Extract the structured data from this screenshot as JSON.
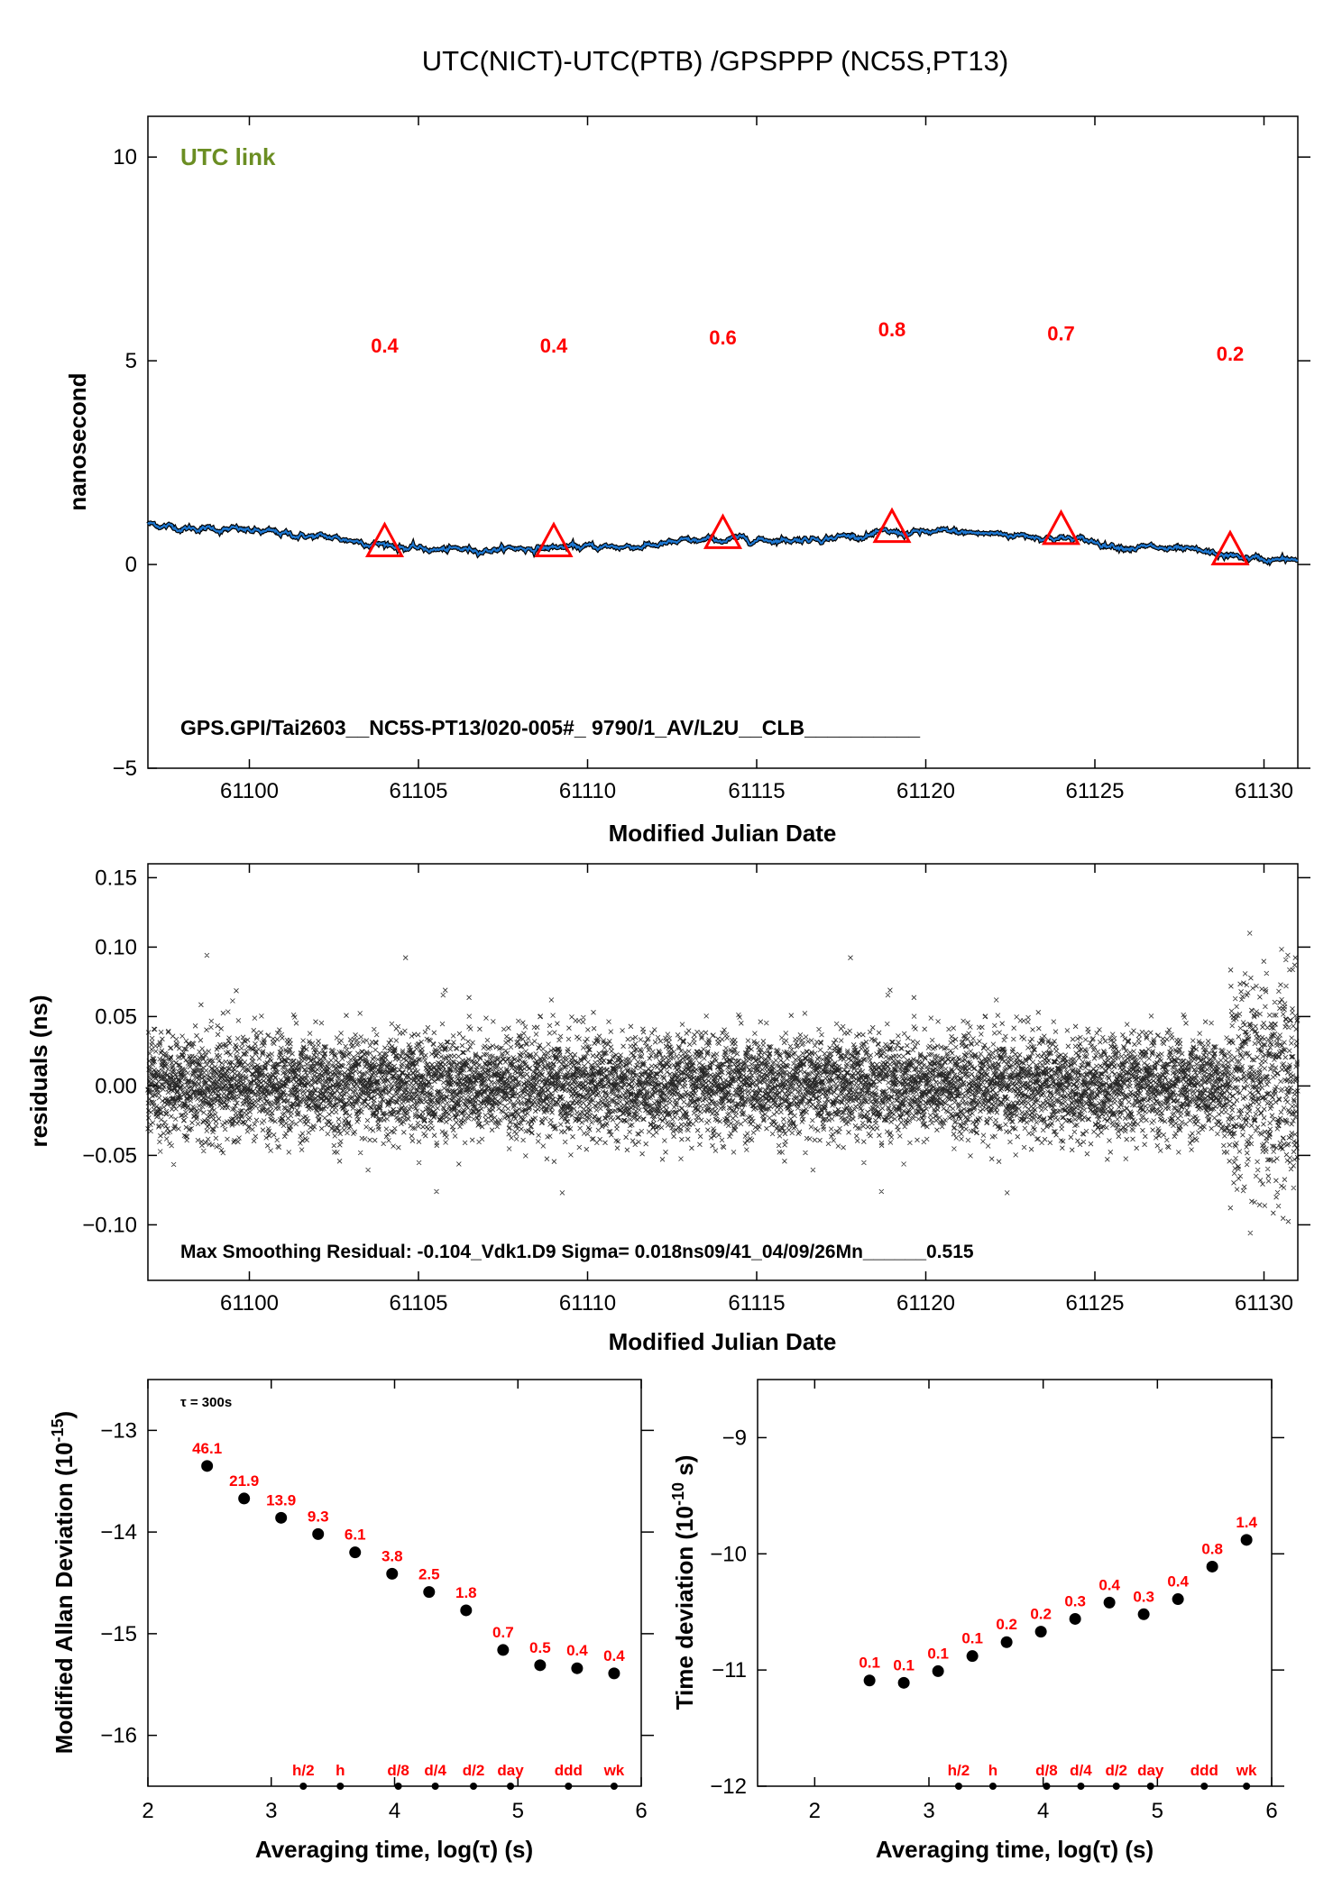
{
  "title": "UTC(NICT)-UTC(PTB)  /GPSPPP  (NC5S,PT13)",
  "colors": {
    "series_blue": "#1e78d2",
    "trace_black": "#000000",
    "marker_red": "#ff0000",
    "link_green": "#6b8e23"
  },
  "chart_data": [
    {
      "id": "top",
      "type": "line",
      "ylabel": "nanosecond",
      "xlabel": "Modified Julian Date",
      "xlim": [
        61097,
        61131
      ],
      "ylim": [
        -5,
        11
      ],
      "xticks": [
        61100,
        61105,
        61110,
        61115,
        61120,
        61125,
        61130
      ],
      "xtick_labels": [
        "61100",
        "61105",
        "61110",
        "61115",
        "61120",
        "61125",
        "61130"
      ],
      "yticks": [
        -5,
        0,
        5,
        10
      ],
      "ytick_labels": [
        "−5",
        "0",
        "5",
        "10"
      ],
      "link_label": "UTC link",
      "info": "GPS.GPI/Tai2603__NC5S-PT13/020-005#_  9790/1_AV/L2U__CLB__________",
      "series": [
        {
          "x": [
            61097,
            61098,
            61099,
            61100,
            61101,
            61102,
            61103,
            61104,
            61105,
            61106,
            61107,
            61108,
            61109,
            61110,
            61111,
            61112,
            61113,
            61114,
            61115,
            61116,
            61117,
            61118,
            61119,
            61120,
            61121,
            61122,
            61123,
            61124,
            61125,
            61126,
            61127,
            61128,
            61129,
            61130,
            61131
          ],
          "y": [
            1.0,
            0.9,
            0.88,
            0.82,
            0.75,
            0.68,
            0.6,
            0.5,
            0.38,
            0.35,
            0.38,
            0.4,
            0.42,
            0.42,
            0.44,
            0.48,
            0.55,
            0.6,
            0.62,
            0.62,
            0.66,
            0.72,
            0.76,
            0.78,
            0.78,
            0.75,
            0.72,
            0.65,
            0.55,
            0.45,
            0.38,
            0.3,
            0.2,
            0.12,
            0.1
          ]
        }
      ],
      "markers": [
        {
          "x": 61104,
          "y": 0.5,
          "label": "0.4",
          "label_y": 5.2
        },
        {
          "x": 61109,
          "y": 0.5,
          "label": "0.4",
          "label_y": 5.2
        },
        {
          "x": 61114,
          "y": 0.7,
          "label": "0.6",
          "label_y": 5.4
        },
        {
          "x": 61119,
          "y": 0.85,
          "label": "0.8",
          "label_y": 5.6
        },
        {
          "x": 61124,
          "y": 0.8,
          "label": "0.7",
          "label_y": 5.5
        },
        {
          "x": 61129,
          "y": 0.3,
          "label": "0.2",
          "label_y": 5.0
        }
      ]
    },
    {
      "id": "residuals",
      "type": "scatter",
      "ylabel": "residuals (ns)",
      "xlabel": "Modified Julian Date",
      "xlim": [
        61097,
        61131
      ],
      "ylim": [
        -0.14,
        0.16
      ],
      "xticks": [
        61100,
        61105,
        61110,
        61115,
        61120,
        61125,
        61130
      ],
      "xtick_labels": [
        "61100",
        "61105",
        "61110",
        "61115",
        "61120",
        "61125",
        "61130"
      ],
      "yticks": [
        -0.1,
        -0.05,
        0.0,
        0.05,
        0.1,
        0.15
      ],
      "ytick_labels": [
        "−0.10",
        "−0.05",
        "0.00",
        "0.05",
        "0.10",
        "0.15"
      ],
      "info": "Max Smoothing Residual: -0.104_Vdk1.D9  Sigma= 0.018ns09/41_04/09/26Mn______0.515",
      "sigma": 0.018,
      "scatter_summary": "dense cloud of ~9000 residual points centred on 0.00 with sigma 0.018 ns and occasional spikes up to about +/-0.1"
    },
    {
      "id": "mdev",
      "type": "scatter",
      "ylabel": "Modified Allan Deviation (10",
      "ylabel_sup": "-15",
      "ylabel_tail": ")",
      "xlabel": "Averaging time, log(τ) (s)",
      "xlim": [
        2,
        6
      ],
      "ylim": [
        -16.5,
        -12.5
      ],
      "xticks": [
        2,
        3,
        4,
        5,
        6
      ],
      "xtick_labels": [
        "2",
        "3",
        "4",
        "5",
        "6"
      ],
      "yticks": [
        -16,
        -15,
        -14,
        -13
      ],
      "ytick_labels": [
        "−16",
        "−15",
        "−14",
        "−13"
      ],
      "tau_note": "τ = 300s",
      "x": [
        2.48,
        2.78,
        3.08,
        3.38,
        3.68,
        3.98,
        4.28,
        4.58,
        4.88,
        5.18,
        5.48,
        5.78
      ],
      "y": [
        -13.35,
        -13.67,
        -13.86,
        -14.02,
        -14.2,
        -14.41,
        -14.59,
        -14.77,
        -15.16,
        -15.31,
        -15.34,
        -15.39
      ],
      "labels": [
        "46.1",
        "21.9",
        "13.9",
        "9.3",
        "6.1",
        "3.8",
        "2.5",
        "1.8",
        "0.7",
        "0.5",
        "0.4",
        "0.4"
      ],
      "markers": [
        {
          "x": 3.26,
          "label": "h/2"
        },
        {
          "x": 3.56,
          "label": "h"
        },
        {
          "x": 4.03,
          "label": "d/8"
        },
        {
          "x": 4.33,
          "label": "d/4"
        },
        {
          "x": 4.64,
          "label": "d/2"
        },
        {
          "x": 4.94,
          "label": "day"
        },
        {
          "x": 5.41,
          "label": "ddd"
        },
        {
          "x": 5.78,
          "label": "wk"
        }
      ]
    },
    {
      "id": "tdev",
      "type": "scatter",
      "ylabel": "Time deviation (10",
      "ylabel_sup": "-10",
      "ylabel_tail": " s)",
      "xlabel": "Averaging time, log(τ) (s)",
      "xlim": [
        1.5,
        6
      ],
      "ylim": [
        -12,
        -8.5
      ],
      "xticks": [
        2,
        3,
        4,
        5,
        6
      ],
      "xtick_labels": [
        "2",
        "3",
        "4",
        "5",
        "6"
      ],
      "yticks": [
        -12,
        -11,
        -10,
        -9
      ],
      "ytick_labels": [
        "−12",
        "−11",
        "−10",
        "−9"
      ],
      "x": [
        2.48,
        2.78,
        3.08,
        3.38,
        3.68,
        3.98,
        4.28,
        4.58,
        4.88,
        5.18,
        5.48,
        5.78
      ],
      "y": [
        -11.09,
        -11.11,
        -11.01,
        -10.88,
        -10.76,
        -10.67,
        -10.56,
        -10.42,
        -10.52,
        -10.39,
        -10.11,
        -9.88
      ],
      "labels": [
        "0.1",
        "0.1",
        "0.1",
        "0.1",
        "0.2",
        "0.2",
        "0.3",
        "0.4",
        "0.3",
        "0.4",
        "0.8",
        "1.4"
      ],
      "markers": [
        {
          "x": 3.26,
          "label": "h/2"
        },
        {
          "x": 3.56,
          "label": "h"
        },
        {
          "x": 4.03,
          "label": "d/8"
        },
        {
          "x": 4.33,
          "label": "d/4"
        },
        {
          "x": 4.64,
          "label": "d/2"
        },
        {
          "x": 4.94,
          "label": "day"
        },
        {
          "x": 5.41,
          "label": "ddd"
        },
        {
          "x": 5.78,
          "label": "wk"
        }
      ]
    }
  ]
}
